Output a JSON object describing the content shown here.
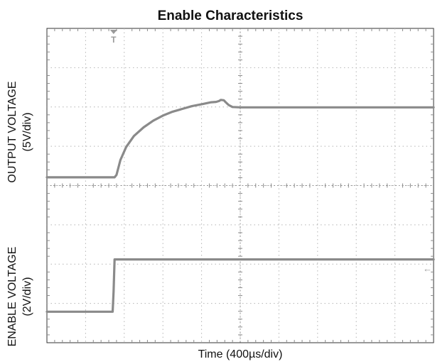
{
  "chart_data": {
    "type": "line",
    "title": "Enable Characteristics",
    "xlabel": "Time (400µs/div)",
    "ylabel_top": [
      "OUTPUT VOLTAGE",
      "(5V/div)"
    ],
    "ylabel_bottom": [
      "ENABLE VOLTAGE",
      "(2V/div)"
    ],
    "grid": true,
    "x_divisions": 10,
    "y_divisions": 8,
    "xlim": [
      0,
      4000
    ],
    "x_unit": "µs",
    "series": [
      {
        "name": "",
        "channel": "output",
        "color": "#8a8a8a",
        "x": [
          0,
          700,
          720,
          760,
          820,
          900,
          1000,
          1100,
          1200,
          1300,
          1400,
          1500,
          1600,
          1700,
          1750,
          1780,
          1800,
          1830,
          1850,
          1880,
          1920,
          2000,
          2400,
          3000,
          3500,
          4000
        ],
        "y": [
          0.21,
          0.21,
          0.27,
          0.65,
          0.98,
          1.26,
          1.48,
          1.65,
          1.78,
          1.88,
          1.95,
          2.02,
          2.07,
          2.12,
          2.13,
          2.15,
          2.18,
          2.17,
          2.12,
          2.05,
          2.0,
          1.99,
          1.99,
          1.99,
          1.99,
          1.99
        ]
      },
      {
        "name": "",
        "channel": "enable",
        "color": "#8a8a8a",
        "x": [
          0,
          680,
          690,
          700,
          1000,
          2000,
          3000,
          4000
        ],
        "y": [
          -3.21,
          -3.21,
          -2.7,
          -1.88,
          -1.88,
          -1.88,
          -1.88,
          -1.88
        ]
      }
    ],
    "markers": {
      "trigger": "T",
      "level": "←"
    }
  }
}
